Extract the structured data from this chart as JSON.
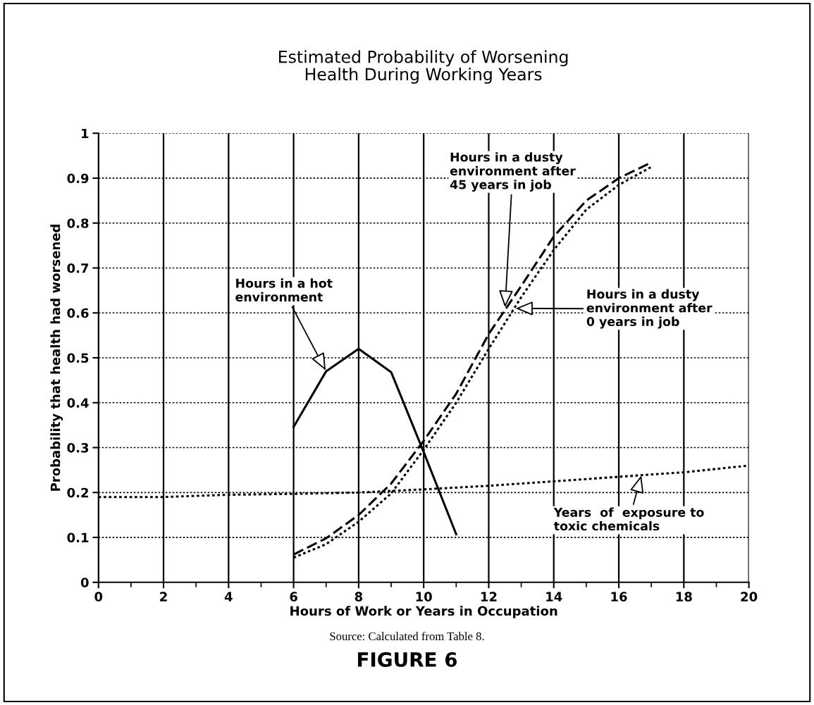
{
  "chart_data": {
    "type": "line",
    "title": "Estimated Probability of Worsening\nHealth During Working Years",
    "xlabel": "Hours of Work or Years in Occupation",
    "ylabel": "Probability that health had worsened",
    "xlim": [
      0,
      20
    ],
    "xticks": [
      0,
      2,
      4,
      6,
      8,
      10,
      12,
      14,
      16,
      18,
      20
    ],
    "ylim": [
      0,
      1
    ],
    "yticks": [
      0,
      0.1,
      0.2,
      0.3,
      0.4,
      0.5,
      0.6,
      0.7,
      0.8,
      0.9,
      1
    ],
    "grid": true,
    "legend": false,
    "series": [
      {
        "color": "#000000",
        "line_style": "solid",
        "x": [
          6,
          7,
          8,
          9,
          10,
          11
        ],
        "values": [
          0.346,
          0.47,
          0.52,
          0.468,
          0.29,
          0.107
        ]
      },
      {
        "color": "#000000",
        "line_style": "dashed",
        "x": [
          6,
          7,
          8,
          9,
          10,
          11,
          12,
          13,
          14,
          15,
          16,
          17
        ],
        "values": [
          0.062,
          0.098,
          0.15,
          0.22,
          0.315,
          0.42,
          0.553,
          0.66,
          0.77,
          0.85,
          0.9,
          0.935
        ]
      },
      {
        "color": "#000000",
        "line_style": "dotted",
        "x": [
          6,
          7,
          8,
          9,
          10,
          11,
          12,
          13,
          14,
          15,
          16,
          17
        ],
        "values": [
          0.055,
          0.085,
          0.135,
          0.198,
          0.295,
          0.4,
          0.52,
          0.635,
          0.74,
          0.83,
          0.885,
          0.925
        ]
      },
      {
        "color": "#000000",
        "line_style": "dotted",
        "x": [
          0,
          2,
          4,
          6,
          8,
          10,
          12,
          14,
          16,
          18,
          20
        ],
        "values": [
          0.19,
          0.19,
          0.195,
          0.197,
          0.2,
          0.207,
          0.215,
          0.225,
          0.235,
          0.245,
          0.26
        ]
      }
    ],
    "annotations": [
      {
        "text": "Hours in a hot\nenvironment",
        "x": 7,
        "y": 0.47
      },
      {
        "text": "Hours in a dusty\nenvironment after\n45 years in job",
        "x": 12.5,
        "y": 0.61
      },
      {
        "text": "Hours in a dusty\nenvironment after\n0 years in job",
        "x": 12.8,
        "y": 0.61
      },
      {
        "text": "Years  of  exposure to\ntoxic chemicals",
        "x": 16.7,
        "y": 0.24
      },
      "Source: Calculated from Table 8.",
      "FIGURE 6"
    ]
  }
}
